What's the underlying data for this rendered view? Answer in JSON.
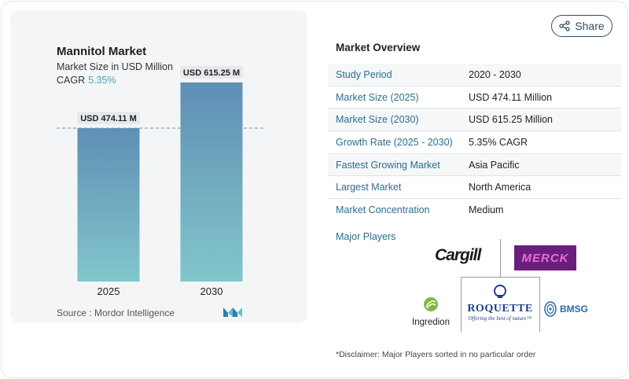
{
  "share_label": "Share",
  "chart": {
    "title": "Mannitol Market",
    "subtitle": "Market Size in USD Million",
    "cagr_label": "CAGR",
    "cagr_value": "5.35%",
    "source": "Source :  Mordor Intelligence"
  },
  "chart_data": {
    "type": "bar",
    "title": "Mannitol Market",
    "ylabel": "Market Size in USD Million",
    "categories": [
      "2025",
      "2030"
    ],
    "values": [
      474.11,
      615.25
    ],
    "data_labels": [
      "USD 474.11 M",
      "USD 615.25 M"
    ],
    "ylim": [
      0,
      700
    ],
    "reference_line": 474.11,
    "colors": {
      "bar_top": "#5f8fb5",
      "bar_bottom": "#82c6cb",
      "label_bg": "#e6e9ec"
    }
  },
  "overview": {
    "title": "Market Overview",
    "rows": [
      {
        "label": "Study Period",
        "value": "2020 - 2030"
      },
      {
        "label": "Market Size (2025)",
        "value": "USD 474.11 Million"
      },
      {
        "label": "Market Size (2030)",
        "value": "USD 615.25 Million"
      },
      {
        "label": "Growth Rate (2025 - 2030)",
        "value": "5.35% CAGR"
      },
      {
        "label": "Fastest Growing Market",
        "value": "Asia Pacific"
      },
      {
        "label": "Largest Market",
        "value": "North America"
      },
      {
        "label": "Market Concentration",
        "value": "Medium"
      }
    ],
    "major_players_label": "Major Players"
  },
  "players": {
    "cargill": "Cargill",
    "merck": "MERCK",
    "ingredion": "Ingredion",
    "roquette": "ROQUETTE",
    "roquette_tagline": "Offering the best of nature™",
    "bmsg": "BMSG"
  },
  "disclaimer": "*Disclaimer: Major Players sorted in no particular order"
}
